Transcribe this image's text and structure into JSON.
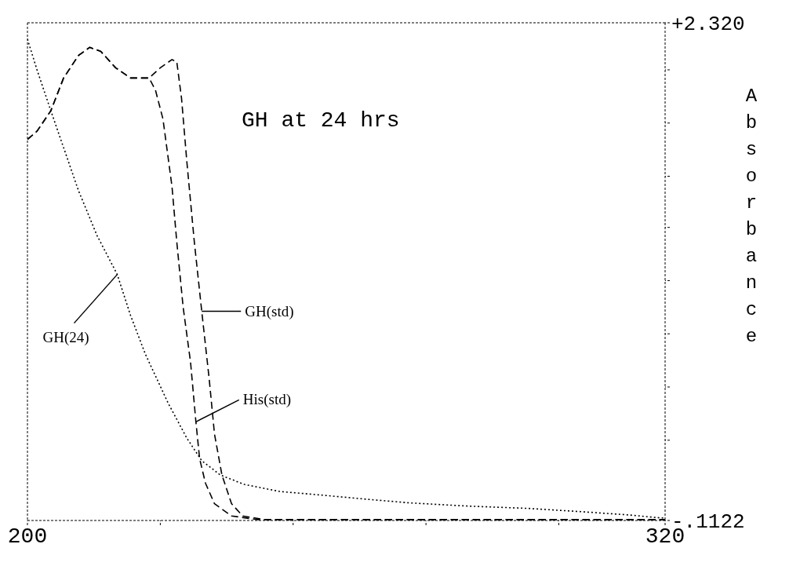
{
  "chart_data": {
    "type": "line",
    "title": "GH at 24 hrs",
    "ylabel": "Absorbance",
    "xlim": [
      200,
      320
    ],
    "xticks": [
      {
        "value": 200,
        "label": "200"
      },
      {
        "value": 225,
        "label": null
      },
      {
        "value": 250,
        "label": null
      },
      {
        "value": 275,
        "label": null
      },
      {
        "value": 300,
        "label": null
      },
      {
        "value": 320,
        "label": "320"
      }
    ],
    "ylim": [
      -0.1122,
      2.32
    ],
    "yticks": [
      {
        "value": -0.1122,
        "label": "-.1122"
      },
      {
        "value": 0.28,
        "label": null
      },
      {
        "value": 0.54,
        "label": null
      },
      {
        "value": 0.8,
        "label": null
      },
      {
        "value": 1.06,
        "label": null
      },
      {
        "value": 1.32,
        "label": null
      },
      {
        "value": 1.57,
        "label": null
      },
      {
        "value": 1.83,
        "label": null
      },
      {
        "value": 2.09,
        "label": null
      },
      {
        "value": 2.32,
        "label": "+2.320"
      }
    ],
    "marker": "none",
    "series": [
      {
        "color": "#000000",
        "line_style": "dotted",
        "x": [
          200,
          201.8,
          204.4,
          206.8,
          209.6,
          213.1,
          216.9,
          219.4,
          222.2,
          226.5,
          230,
          232.8,
          236.3,
          240.8,
          247.6,
          254.9,
          262.8,
          271.8,
          282.9,
          294.1,
          304.1,
          313.1,
          319.3,
          320
        ],
        "values": [
          2.24,
          2.09,
          1.89,
          1.71,
          1.5,
          1.28,
          1.09,
          0.89,
          0.7,
          0.46,
          0.29,
          0.18,
          0.11,
          0.064,
          0.029,
          0.013,
          -0.006,
          -0.026,
          -0.042,
          -0.053,
          -0.069,
          -0.085,
          -0.1,
          -0.1
        ]
      },
      {
        "color": "#000000",
        "line_style": "dashed",
        "x": [
          200,
          201.8,
          204.4,
          206.8,
          209.6,
          211.7,
          213.8,
          216.6,
          219.4,
          222.9,
          224.1,
          225.5,
          227.2,
          228.1,
          229.3,
          230.7,
          231.7,
          232.4,
          233.5,
          235.2,
          238.4,
          243.3,
          320
        ],
        "values": [
          1.75,
          1.79,
          1.89,
          2.05,
          2.16,
          2.2,
          2.18,
          2.1,
          2.05,
          2.05,
          1.99,
          1.85,
          1.52,
          1.25,
          0.93,
          0.66,
          0.37,
          0.19,
          0.07,
          -0.03,
          -0.09,
          -0.108,
          -0.108
        ]
      },
      {
        "color": "#000000",
        "line_style": "dashed",
        "x": [
          200,
          201.8,
          204.4,
          206.8,
          209.6,
          211.7,
          213.8,
          216.6,
          219.4,
          222.9,
          225,
          227.2,
          228.1,
          229,
          230,
          231.4,
          232.8,
          234.2,
          235.2,
          236.6,
          238.4,
          240.5,
          244.7,
          320
        ],
        "values": [
          1.75,
          1.79,
          1.89,
          2.05,
          2.16,
          2.2,
          2.18,
          2.1,
          2.05,
          2.05,
          2.1,
          2.14,
          2.13,
          1.95,
          1.64,
          1.25,
          0.91,
          0.58,
          0.31,
          0.11,
          -0.03,
          -0.09,
          -0.108,
          -0.108
        ]
      }
    ],
    "annotations": [
      {
        "text": "GH(24)",
        "x": 216.9,
        "y": 1.09
      },
      {
        "text": "GH(std)",
        "x": 232.8,
        "y": 0.91
      },
      {
        "text": "His(std)",
        "x": 231.7,
        "y": 0.37
      }
    ]
  }
}
